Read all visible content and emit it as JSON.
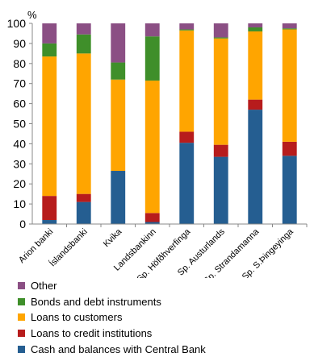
{
  "chart_data": {
    "type": "bar",
    "stacked": true,
    "unit_label": "%",
    "ylim": [
      0,
      100
    ],
    "yticks": [
      0,
      10,
      20,
      30,
      40,
      50,
      60,
      70,
      80,
      90,
      100
    ],
    "grid": false,
    "legend_placement": "bottom",
    "categories": [
      "Arion banki",
      "Íslandsbanki",
      "Kvika",
      "Landsbankinn",
      "Sp. Höfðhverfinga",
      "Sp. Austurlands",
      "Sp. Strandamanna",
      "Sp. S.Þingeyinga"
    ],
    "series": [
      {
        "name": "Cash and balances with Central Bank",
        "color": "#255E91",
        "values": [
          2,
          11,
          26.5,
          1,
          40.5,
          33.5,
          57,
          34
        ]
      },
      {
        "name": "Loans to credit institutions",
        "color": "#B71C1C",
        "values": [
          12,
          4,
          0,
          4.5,
          5.5,
          6,
          5,
          7
        ]
      },
      {
        "name": "Loans to customers",
        "color": "#FFA500",
        "values": [
          69.5,
          70,
          45.5,
          66,
          50.5,
          53,
          34,
          56
        ]
      },
      {
        "name": "Bonds and debt instruments",
        "color": "#3F8F2A",
        "values": [
          6.5,
          9.5,
          8.5,
          22,
          0.5,
          0.5,
          2,
          0.5
        ]
      },
      {
        "name": "Other",
        "color": "#8B4F84",
        "values": [
          10,
          5.5,
          19.5,
          6.5,
          3,
          7,
          2,
          2.5
        ]
      }
    ]
  }
}
